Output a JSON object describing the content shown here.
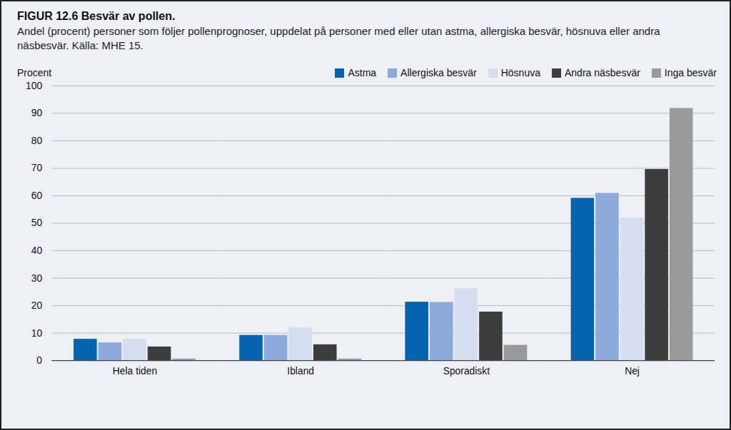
{
  "chart_data": {
    "type": "bar",
    "title": "FIGUR 12.6 Besvär av pollen.",
    "subtitle": "Andel (procent) personer som följer pollenprognoser, uppdelat på personer med eller utan astma, allergiska besvär, hösnuva eller andra näsbesvär. Källa: MHE 15.",
    "y_label": "Procent",
    "categories": [
      "Hela tiden",
      "Ibland",
      "Sporadiskt",
      "Nej"
    ],
    "series": [
      {
        "name": "Astma",
        "color": "#0563b0",
        "values": [
          7.8,
          9.2,
          21.3,
          59.1
        ]
      },
      {
        "name": "Allergiska besvär",
        "color": "#8eaadc",
        "values": [
          6.5,
          9.2,
          21.2,
          60.9
        ]
      },
      {
        "name": "Hösnuva",
        "color": "#d5ddf1",
        "values": [
          7.8,
          12.0,
          26.2,
          51.9
        ]
      },
      {
        "name": "Andra näsbesvär",
        "color": "#3d3d3d",
        "values": [
          5.0,
          5.8,
          17.7,
          69.6
        ]
      },
      {
        "name": "Inga besvär",
        "color": "#9a9a9a",
        "values": [
          0.6,
          0.6,
          5.6,
          91.8
        ]
      }
    ],
    "ylim": [
      0,
      100
    ],
    "yticks": [
      0,
      10,
      20,
      30,
      40,
      50,
      60,
      70,
      80,
      90,
      100
    ],
    "grid": true,
    "legend": "top-right"
  }
}
